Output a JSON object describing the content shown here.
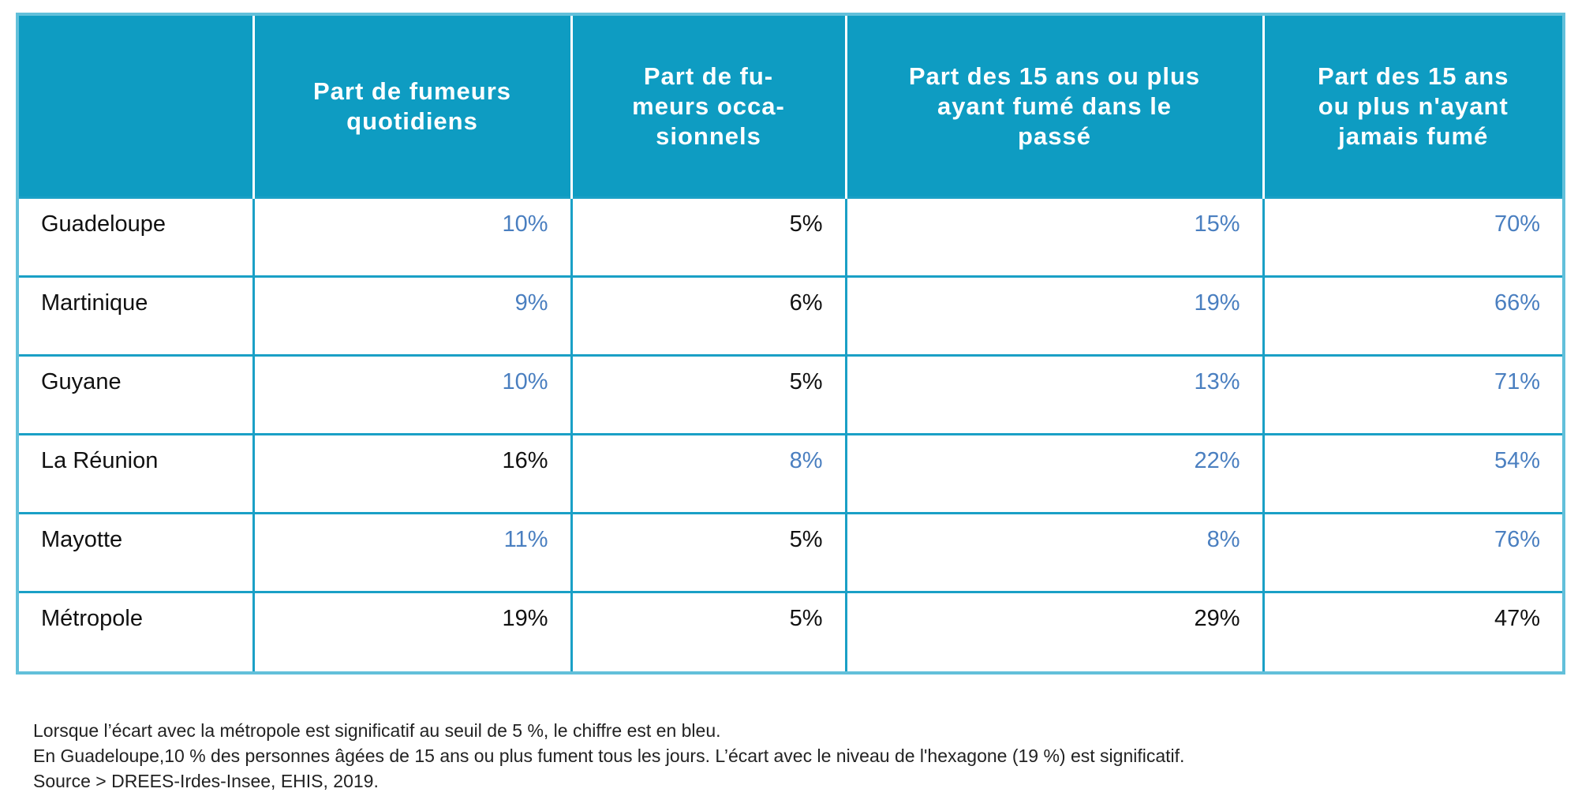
{
  "table": {
    "header": [
      "",
      "Part de fumeurs\nquotidiens",
      "Part de fu-\nmeurs occa-\nsionnels",
      "Part des 15 ans ou plus\nayant fumé dans le\npassé",
      "Part des 15 ans\nou plus n'ayant\njamais fumé"
    ],
    "rows": [
      {
        "label": "Guadeloupe",
        "cells": [
          {
            "text": "10%",
            "color": "#4a7fc0"
          },
          {
            "text": "5%",
            "color": "#111111"
          },
          {
            "text": "15%",
            "color": "#4a7fc0"
          },
          {
            "text": "70%",
            "color": "#4a7fc0"
          }
        ]
      },
      {
        "label": "Martinique",
        "cells": [
          {
            "text": "9%",
            "color": "#4a7fc0"
          },
          {
            "text": "6%",
            "color": "#111111"
          },
          {
            "text": "19%",
            "color": "#4a7fc0"
          },
          {
            "text": "66%",
            "color": "#4a7fc0"
          }
        ]
      },
      {
        "label": "Guyane",
        "cells": [
          {
            "text": "10%",
            "color": "#4a7fc0"
          },
          {
            "text": "5%",
            "color": "#111111"
          },
          {
            "text": "13%",
            "color": "#4a7fc0"
          },
          {
            "text": "71%",
            "color": "#4a7fc0"
          }
        ]
      },
      {
        "label": "La Réunion",
        "cells": [
          {
            "text": "16%",
            "color": "#111111"
          },
          {
            "text": "8%",
            "color": "#4a7fc0"
          },
          {
            "text": "22%",
            "color": "#4a7fc0"
          },
          {
            "text": "54%",
            "color": "#4a7fc0"
          }
        ]
      },
      {
        "label": "Mayotte",
        "cells": [
          {
            "text": "11%",
            "color": "#4a7fc0"
          },
          {
            "text": "5%",
            "color": "#111111"
          },
          {
            "text": "8%",
            "color": "#4a7fc0"
          },
          {
            "text": "76%",
            "color": "#4a7fc0"
          }
        ]
      },
      {
        "label": "Métropole",
        "cells": [
          {
            "text": "19%",
            "color": "#111111"
          },
          {
            "text": "5%",
            "color": "#111111"
          },
          {
            "text": "29%",
            "color": "#111111"
          },
          {
            "text": "47%",
            "color": "#111111"
          }
        ]
      }
    ]
  },
  "notes": [
    "Lorsque l’écart avec la métropole est significatif au seuil de 5 %, le chiffre est en bleu.",
    "En Guadeloupe,10 % des personnes âgées de 15 ans ou plus fument tous les jours. L’écart avec le niveau de l'hexagone (19 %) est significatif.",
    "Source > DREES-Irdes-Insee, EHIS, 2019."
  ]
}
